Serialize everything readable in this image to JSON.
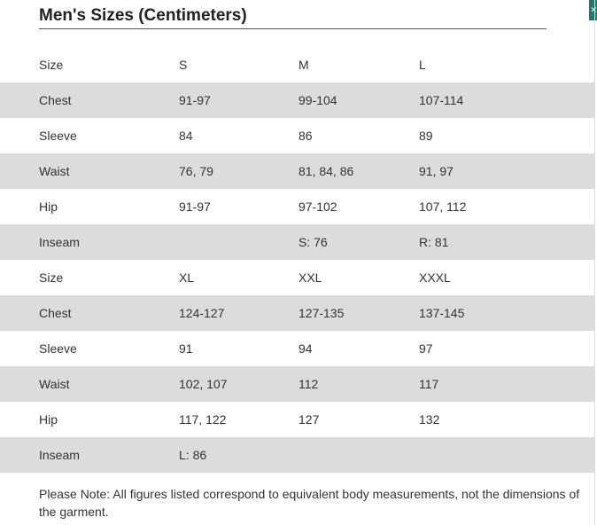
{
  "title": "Men's Sizes (Centimeters)",
  "rows": [
    {
      "label": "Size",
      "values": [
        "S",
        "M",
        "L"
      ]
    },
    {
      "label": "Chest",
      "values": [
        "91-97",
        "99-104",
        "107-114"
      ]
    },
    {
      "label": "Sleeve",
      "values": [
        "84",
        "86",
        "89"
      ]
    },
    {
      "label": "Waist",
      "values": [
        "76, 79",
        "81, 84, 86",
        "91, 97"
      ]
    },
    {
      "label": "Hip",
      "values": [
        "91-97",
        "97-102",
        "107, 112"
      ]
    },
    {
      "label": "Inseam",
      "values": [
        "",
        "S: 76",
        "R: 81"
      ]
    },
    {
      "label": "Size",
      "values": [
        "XL",
        "XXL",
        "XXXL"
      ]
    },
    {
      "label": "Chest",
      "values": [
        "124-127",
        "127-135",
        "137-145"
      ]
    },
    {
      "label": "Sleeve",
      "values": [
        "91",
        "94",
        "97"
      ]
    },
    {
      "label": "Waist",
      "values": [
        "102, 107",
        "112",
        "117"
      ]
    },
    {
      "label": "Hip",
      "values": [
        "117, 122",
        "127",
        "132"
      ]
    },
    {
      "label": "Inseam",
      "values": [
        "L: 86",
        "",
        ""
      ]
    }
  ],
  "note": "Please Note: All figures listed correspond to equivalent body measurements, not the dimensions of the garment.",
  "colors": {
    "shaded_row": "#dcdcdc",
    "text": "#333333",
    "corner_tab": "#1f7a6b"
  }
}
